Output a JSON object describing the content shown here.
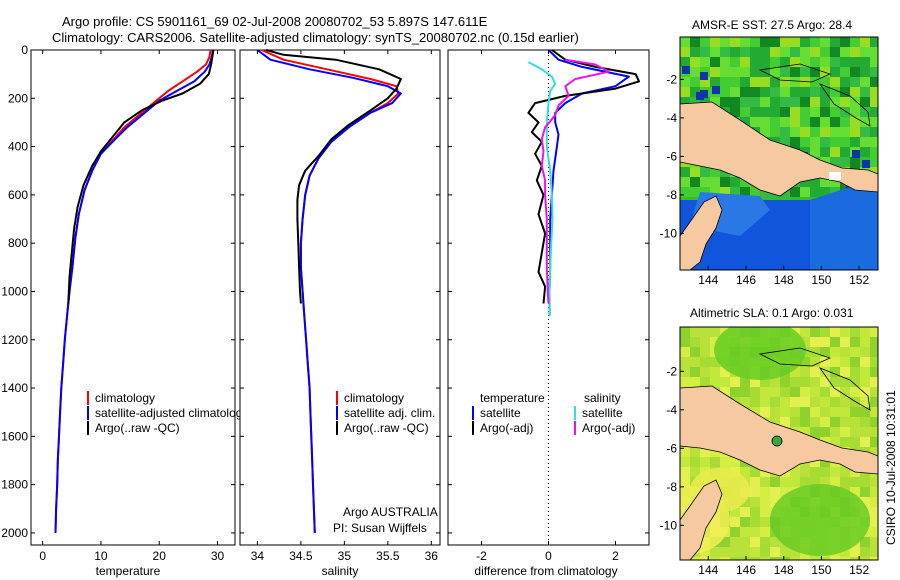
{
  "header": {
    "line1": "Argo profile: CS 5901161_69 02-Jul-2008 20080702_53 5.897S 147.611E",
    "line2": "Climatology: CARS2006. Satellite-adjusted climatology: synTS_20080702.nc (0.15d earlier)"
  },
  "credits": {
    "program": "Argo AUSTRALIA",
    "pi": "PI: Susan Wijffels",
    "stamp": "CSIRO 10-Jul-2008 10:31:01"
  },
  "colors": {
    "climatology": "#ff0000",
    "satellite": "#0000ff",
    "argo": "#000000",
    "sal_satellite": "#33dddd",
    "sal_argo": "#ee11ee",
    "land": "#f6c9a1"
  },
  "chart_data": [
    {
      "id": "temperature",
      "type": "line",
      "xlabel": "temperature",
      "xlim": [
        -2,
        33
      ],
      "xticks": [
        0,
        10,
        20,
        30
      ],
      "ylim": [
        2050,
        0
      ],
      "yticks": [
        0,
        200,
        400,
        600,
        800,
        1000,
        1200,
        1400,
        1600,
        1800,
        2000
      ],
      "legend": [
        "climatology",
        "satellite-adjusted climatology",
        "Argo(..raw -QC)"
      ],
      "series": [
        {
          "name": "climatology",
          "color": "climatology",
          "points": [
            [
              28.8,
              0
            ],
            [
              28.6,
              30
            ],
            [
              28.0,
              60
            ],
            [
              26.5,
              90
            ],
            [
              24,
              130
            ],
            [
              21.5,
              170
            ],
            [
              19.5,
              210
            ],
            [
              17,
              260
            ],
            [
              14,
              320
            ],
            [
              11.8,
              380
            ],
            [
              10,
              430
            ],
            [
              8.5,
              500
            ],
            [
              7.2,
              580
            ],
            [
              6.2,
              680
            ],
            [
              5.6,
              780
            ],
            [
              5.1,
              900
            ],
            [
              4.6,
              1000
            ],
            [
              4.2,
              1100
            ],
            [
              3.8,
              1200
            ],
            [
              3.5,
              1300
            ],
            [
              3.2,
              1400
            ],
            [
              3.0,
              1500
            ],
            [
              2.8,
              1600
            ],
            [
              2.6,
              1700
            ],
            [
              2.5,
              1800
            ],
            [
              2.3,
              1900
            ],
            [
              2.2,
              2000
            ]
          ]
        },
        {
          "name": "satellite-adjusted climatology",
          "color": "satellite",
          "points": [
            [
              29.2,
              0
            ],
            [
              29,
              30
            ],
            [
              28.6,
              60
            ],
            [
              27.8,
              90
            ],
            [
              26,
              130
            ],
            [
              23,
              170
            ],
            [
              20,
              210
            ],
            [
              17.5,
              260
            ],
            [
              14.5,
              320
            ],
            [
              12,
              380
            ],
            [
              10,
              430
            ],
            [
              8.5,
              500
            ],
            [
              7.2,
              580
            ],
            [
              6.2,
              680
            ],
            [
              5.6,
              780
            ],
            [
              5.1,
              900
            ],
            [
              4.6,
              1000
            ],
            [
              4.2,
              1100
            ],
            [
              3.8,
              1200
            ],
            [
              3.5,
              1300
            ],
            [
              3.2,
              1400
            ],
            [
              3.0,
              1500
            ],
            [
              2.8,
              1600
            ],
            [
              2.6,
              1700
            ],
            [
              2.5,
              1800
            ],
            [
              2.3,
              1900
            ],
            [
              2.2,
              2000
            ]
          ]
        },
        {
          "name": "Argo(..raw -QC)",
          "color": "argo",
          "points": [
            [
              29.3,
              0
            ],
            [
              29.1,
              30
            ],
            [
              28.9,
              60
            ],
            [
              28.5,
              100
            ],
            [
              27,
              140
            ],
            [
              24,
              180
            ],
            [
              20.5,
              210
            ],
            [
              17,
              250
            ],
            [
              14,
              300
            ],
            [
              12,
              360
            ],
            [
              10,
              420
            ],
            [
              8.5,
              480
            ],
            [
              7.0,
              560
            ],
            [
              6.0,
              650
            ],
            [
              5.4,
              740
            ],
            [
              5.0,
              840
            ],
            [
              4.6,
              940
            ],
            [
              4.4,
              1050
            ]
          ]
        }
      ]
    },
    {
      "id": "salinity",
      "type": "line",
      "xlabel": "salinity",
      "xlim": [
        33.8,
        36.1
      ],
      "xticks": [
        34,
        34.5,
        35,
        35.5,
        36
      ],
      "ylim": [
        2050,
        0
      ],
      "legend": [
        "climatology",
        "satellite adj. clim.",
        "Argo(..raw -QC)"
      ],
      "series": [
        {
          "name": "climatology",
          "color": "climatology",
          "points": [
            [
              34.05,
              0
            ],
            [
              34.3,
              40
            ],
            [
              34.8,
              80
            ],
            [
              35.3,
              120
            ],
            [
              35.6,
              150
            ],
            [
              35.62,
              180
            ],
            [
              35.5,
              220
            ],
            [
              35.3,
              260
            ],
            [
              35.05,
              320
            ],
            [
              34.85,
              380
            ],
            [
              34.7,
              450
            ],
            [
              34.6,
              520
            ],
            [
              34.55,
              600
            ],
            [
              34.52,
              700
            ],
            [
              34.5,
              800
            ],
            [
              34.5,
              900
            ],
            [
              34.52,
              1000
            ],
            [
              34.54,
              1100
            ],
            [
              34.56,
              1200
            ],
            [
              34.58,
              1300
            ],
            [
              34.6,
              1400
            ],
            [
              34.61,
              1500
            ],
            [
              34.62,
              1600
            ],
            [
              34.63,
              1700
            ],
            [
              34.64,
              1800
            ],
            [
              34.65,
              1900
            ],
            [
              34.66,
              2000
            ]
          ]
        },
        {
          "name": "satellite adj. clim.",
          "color": "satellite",
          "points": [
            [
              34.0,
              0
            ],
            [
              34.15,
              40
            ],
            [
              34.6,
              80
            ],
            [
              35.1,
              115
            ],
            [
              35.5,
              150
            ],
            [
              35.65,
              180
            ],
            [
              35.55,
              220
            ],
            [
              35.3,
              260
            ],
            [
              35.05,
              320
            ],
            [
              34.85,
              380
            ],
            [
              34.7,
              450
            ],
            [
              34.6,
              520
            ],
            [
              34.55,
              600
            ],
            [
              34.52,
              700
            ],
            [
              34.5,
              800
            ],
            [
              34.5,
              900
            ],
            [
              34.52,
              1000
            ],
            [
              34.54,
              1100
            ],
            [
              34.56,
              1200
            ],
            [
              34.58,
              1300
            ],
            [
              34.6,
              1400
            ],
            [
              34.61,
              1500
            ],
            [
              34.62,
              1600
            ],
            [
              34.63,
              1700
            ],
            [
              34.64,
              1800
            ],
            [
              34.65,
              1900
            ],
            [
              34.66,
              2000
            ]
          ]
        },
        {
          "name": "Argo(..raw -QC)",
          "color": "argo",
          "points": [
            [
              34.1,
              0
            ],
            [
              34.3,
              20
            ],
            [
              34.9,
              40
            ],
            [
              35.4,
              80
            ],
            [
              35.65,
              120
            ],
            [
              35.6,
              160
            ],
            [
              35.5,
              200
            ],
            [
              35.3,
              250
            ],
            [
              35.05,
              310
            ],
            [
              34.85,
              370
            ],
            [
              34.7,
              440
            ],
            [
              34.55,
              500
            ],
            [
              34.48,
              560
            ],
            [
              34.46,
              620
            ],
            [
              34.46,
              700
            ],
            [
              34.47,
              800
            ],
            [
              34.48,
              900
            ],
            [
              34.49,
              1000
            ],
            [
              34.5,
              1050
            ]
          ]
        }
      ]
    },
    {
      "id": "difference",
      "type": "line",
      "xlabel": "difference from climatology",
      "xlim": [
        -3,
        3
      ],
      "xticks": [
        -2,
        0,
        2
      ],
      "ylim": [
        2050,
        0
      ],
      "legend_headers": [
        "temperature",
        "salinity"
      ],
      "legend": [
        "satellite",
        "Argo(-adj)",
        "satellite",
        "Argo(-adj)"
      ],
      "series": [
        {
          "name": "temperature satellite",
          "color": "satellite",
          "points": [
            [
              0,
              0
            ],
            [
              0.3,
              40
            ],
            [
              1.0,
              70
            ],
            [
              2.4,
              110
            ],
            [
              2.0,
              150
            ],
            [
              1.0,
              180
            ],
            [
              0.5,
              220
            ],
            [
              0.2,
              260
            ],
            [
              0.2,
              300
            ],
            [
              0.3,
              350
            ],
            [
              0.25,
              400
            ],
            [
              0.2,
              450
            ],
            [
              0.15,
              500
            ],
            [
              0.1,
              600
            ],
            [
              0.05,
              700
            ],
            [
              0.05,
              800
            ],
            [
              0.05,
              900
            ],
            [
              0.03,
              1000
            ],
            [
              0.03,
              1100
            ]
          ]
        },
        {
          "name": "temperature Argo(-adj)",
          "color": "argo",
          "points": [
            [
              0.1,
              0
            ],
            [
              0.5,
              40
            ],
            [
              1.4,
              70
            ],
            [
              2.6,
              100
            ],
            [
              2.7,
              130
            ],
            [
              2.0,
              160
            ],
            [
              0.5,
              190
            ],
            [
              -0.4,
              220
            ],
            [
              -0.6,
              260
            ],
            [
              -0.3,
              300
            ],
            [
              -0.5,
              340
            ],
            [
              -0.2,
              380
            ],
            [
              -0.4,
              430
            ],
            [
              -0.2,
              480
            ],
            [
              -0.35,
              540
            ],
            [
              -0.15,
              600
            ],
            [
              -0.3,
              680
            ],
            [
              -0.1,
              760
            ],
            [
              -0.2,
              840
            ],
            [
              -0.3,
              920
            ],
            [
              -0.1,
              980
            ],
            [
              -0.15,
              1050
            ]
          ]
        },
        {
          "name": "salinity satellite",
          "color": "sal_satellite",
          "points": [
            [
              -0.6,
              50
            ],
            [
              -0.2,
              80
            ],
            [
              0.1,
              110
            ],
            [
              0.2,
              140
            ],
            [
              0.05,
              170
            ],
            [
              0.0,
              220
            ],
            [
              -0.05,
              300
            ],
            [
              -0.05,
              400
            ],
            [
              0.05,
              500
            ],
            [
              0.1,
              600
            ],
            [
              0.12,
              700
            ],
            [
              0.08,
              800
            ],
            [
              0.05,
              900
            ],
            [
              0.03,
              1000
            ],
            [
              0.02,
              1100
            ]
          ]
        },
        {
          "name": "salinity Argo(-adj)",
          "color": "sal_argo",
          "points": [
            [
              0.5,
              40
            ],
            [
              1.4,
              60
            ],
            [
              1.8,
              90
            ],
            [
              0.8,
              120
            ],
            [
              0.5,
              150
            ],
            [
              0.6,
              190
            ],
            [
              0.3,
              230
            ],
            [
              0.2,
              270
            ],
            [
              -0.1,
              320
            ],
            [
              -0.2,
              370
            ],
            [
              -0.15,
              420
            ],
            [
              -0.2,
              480
            ],
            [
              -0.1,
              540
            ],
            [
              -0.1,
              600
            ],
            [
              -0.05,
              700
            ],
            [
              -0.05,
              800
            ],
            [
              -0.05,
              900
            ],
            [
              -0.02,
              1000
            ],
            [
              0.0,
              1050
            ]
          ]
        }
      ]
    },
    {
      "id": "sst-map",
      "type": "heatmap",
      "title": "AMSR-E SST: 27.5 Argo: 28.4",
      "xlim": [
        142.5,
        153
      ],
      "xticks": [
        144,
        146,
        148,
        150,
        152
      ],
      "ylim": [
        -11.9,
        0.2
      ],
      "yticks": [
        -2,
        -4,
        -6,
        -8,
        -10
      ]
    },
    {
      "id": "sla-map",
      "type": "heatmap",
      "title": "Altimetric SLA: 0.1 Argo: 0.031",
      "xlim": [
        142.5,
        153
      ],
      "xticks": [
        144,
        146,
        148,
        150,
        152
      ],
      "ylim": [
        -11.8,
        0.3
      ],
      "yticks": [
        -2,
        -4,
        -6,
        -8,
        -10
      ]
    }
  ]
}
